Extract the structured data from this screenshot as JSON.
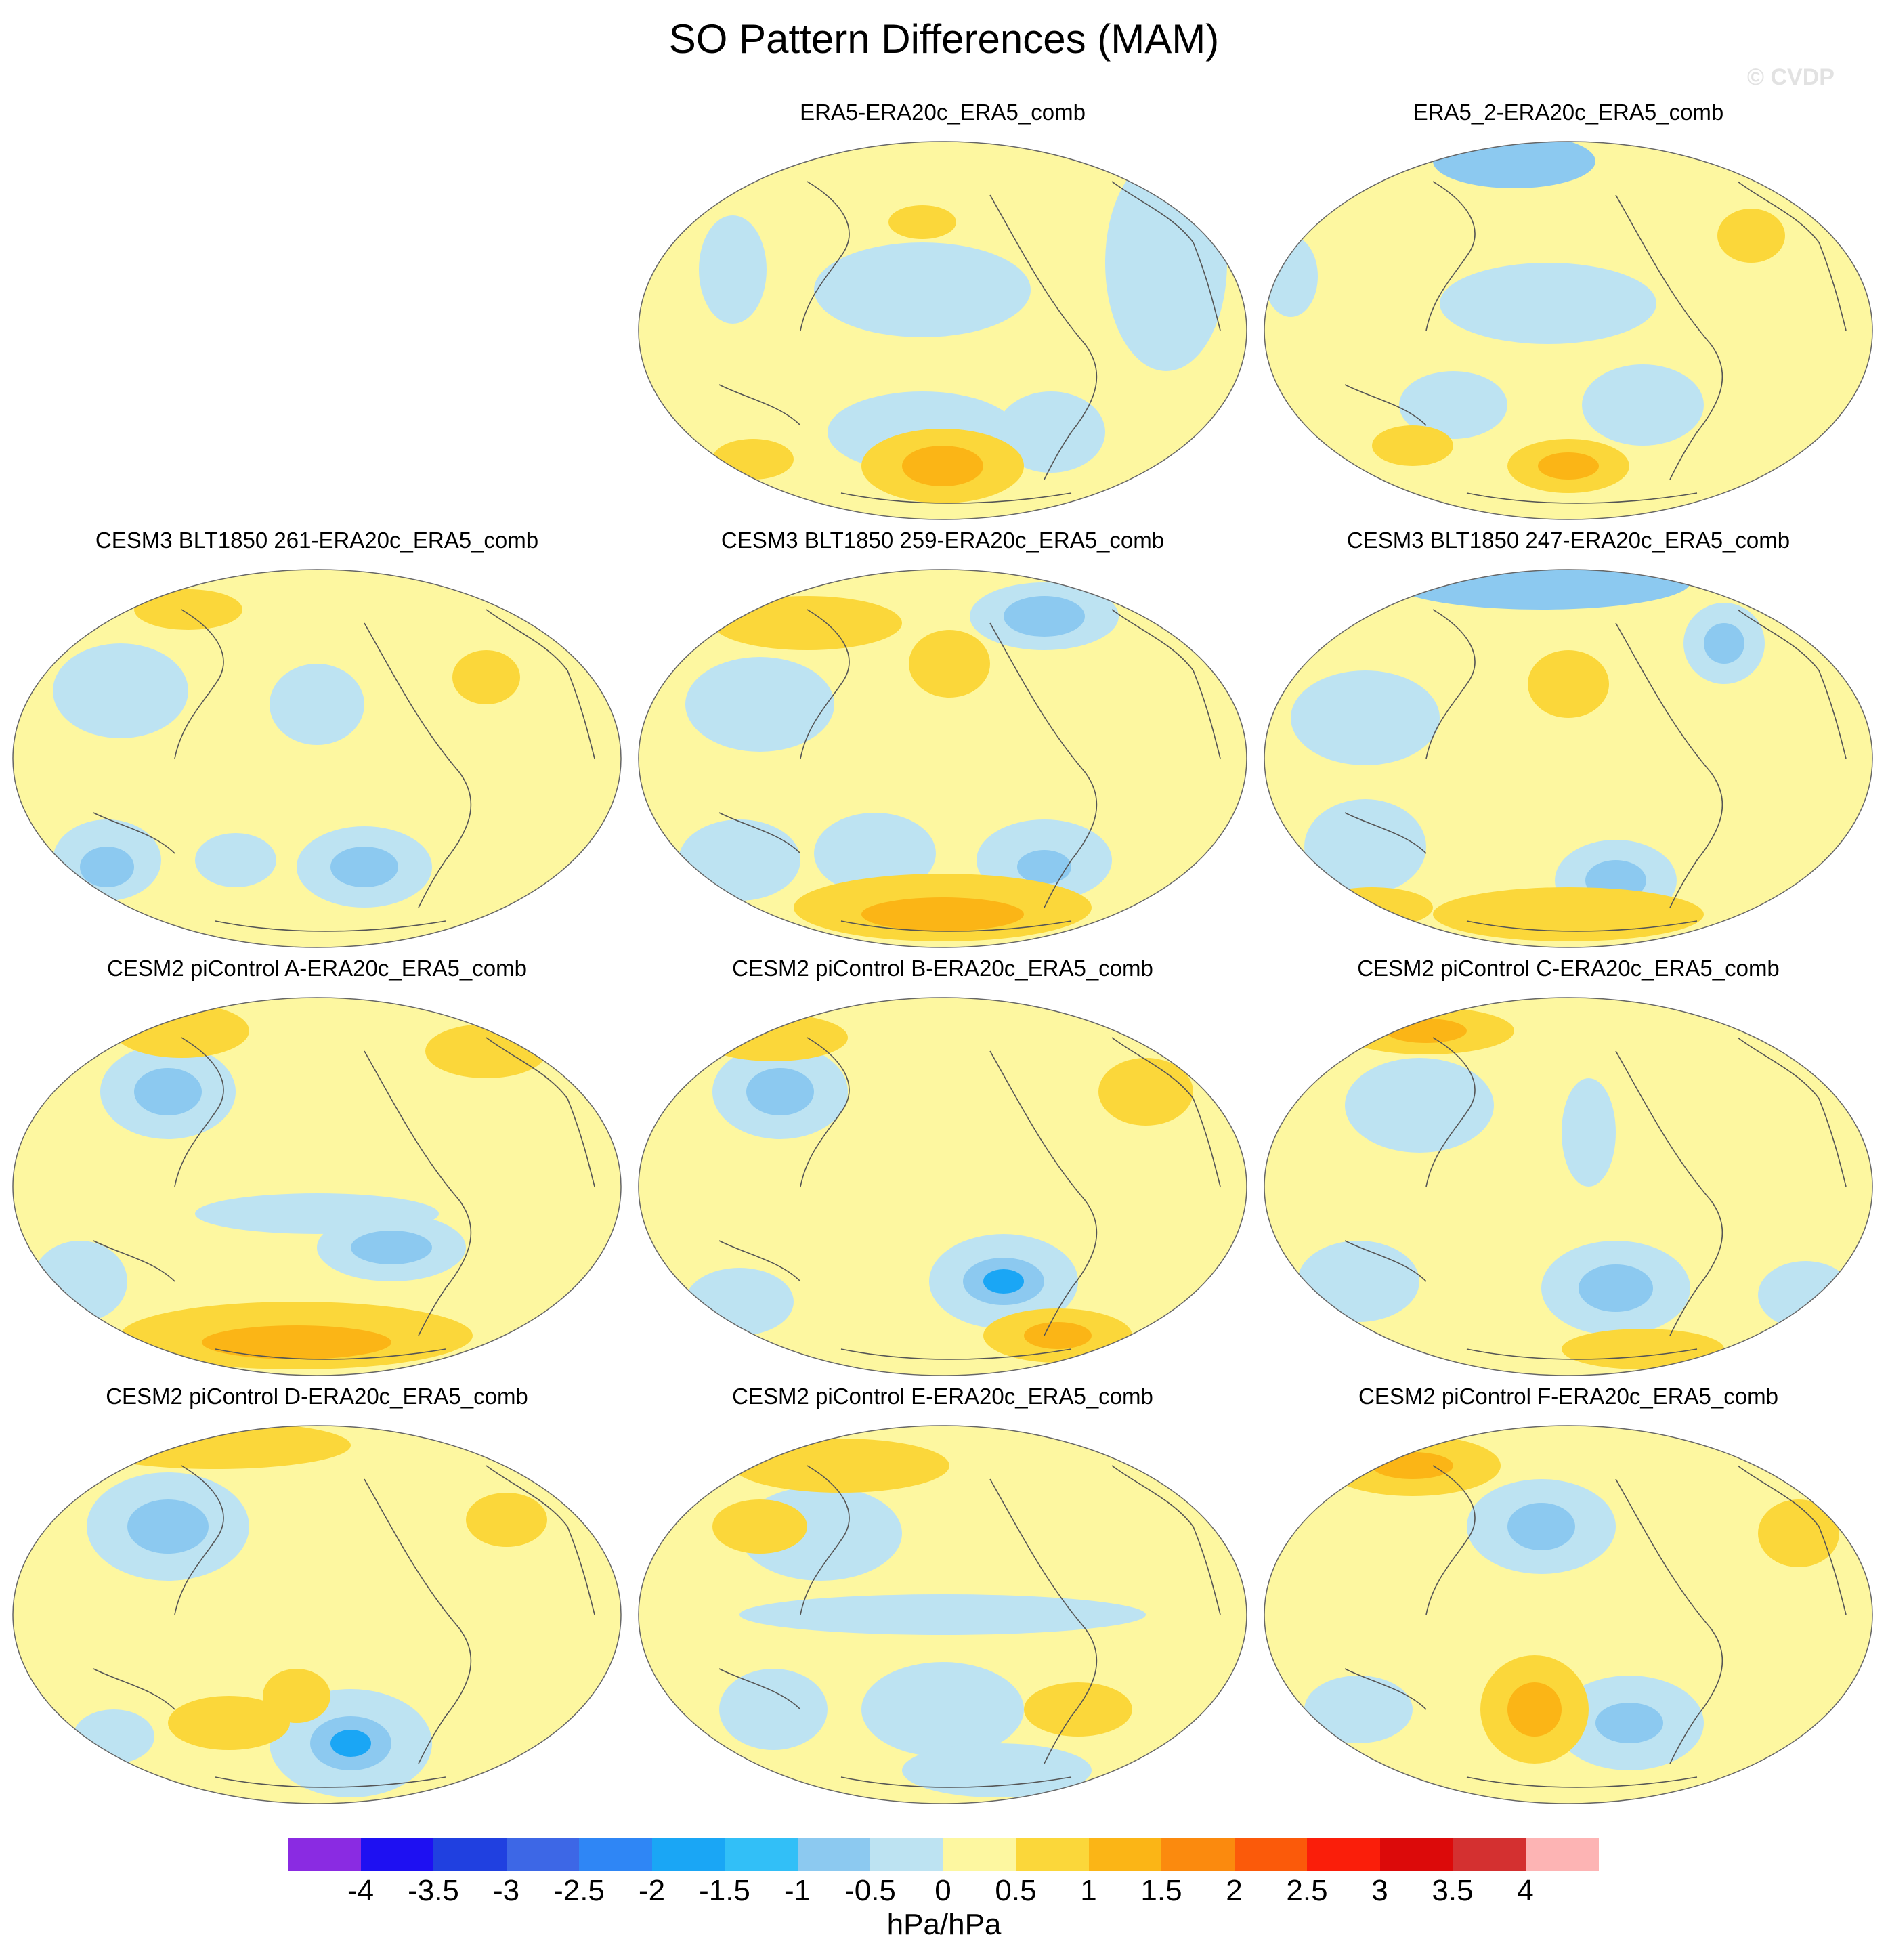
{
  "title": "SO Pattern Differences (MAM)",
  "watermark": "© CVDP",
  "panels": [
    {
      "title": "ERA5-ERA20c_ERA5_comb"
    },
    {
      "title": "ERA5_2-ERA20c_ERA5_comb"
    },
    {
      "title": "CESM3 BLT1850 261-ERA20c_ERA5_comb"
    },
    {
      "title": "CESM3 BLT1850 259-ERA20c_ERA5_comb"
    },
    {
      "title": "CESM3 BLT1850 247-ERA20c_ERA5_comb"
    },
    {
      "title": "CESM2 piControl A-ERA20c_ERA5_comb"
    },
    {
      "title": "CESM2 piControl B-ERA20c_ERA5_comb"
    },
    {
      "title": "CESM2 piControl C-ERA20c_ERA5_comb"
    },
    {
      "title": "CESM2 piControl D-ERA20c_ERA5_comb"
    },
    {
      "title": "CESM2 piControl E-ERA20c_ERA5_comb"
    },
    {
      "title": "CESM2 piControl F-ERA20c_ERA5_comb"
    }
  ],
  "colorbar": {
    "units": "hPa/hPa",
    "labels": [
      "-4",
      "-3.5",
      "-3",
      "-2.5",
      "-2",
      "-1.5",
      "-1",
      "-0.5",
      "0",
      "0.5",
      "1",
      "1.5",
      "2",
      "2.5",
      "3",
      "3.5",
      "4"
    ],
    "colors": [
      "#8a2be2",
      "#1e10f2",
      "#2040e0",
      "#3d67e6",
      "#2f86f5",
      "#1aa6f5",
      "#32bff7",
      "#8cc9f0",
      "#bde3f2",
      "#fdf7a0",
      "#fbd73a",
      "#fbb516",
      "#fb8a0e",
      "#fb5a0a",
      "#fa1e0a",
      "#dc0a0a",
      "#d43030",
      "#fdb4b4"
    ]
  }
}
